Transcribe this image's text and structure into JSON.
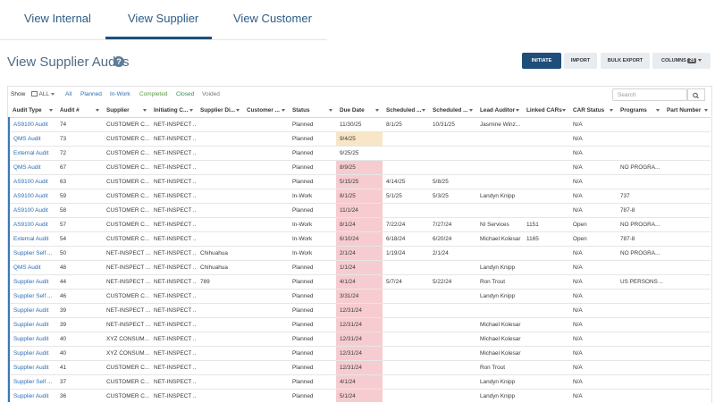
{
  "tabs": [
    "View Internal",
    "View Supplier",
    "View Customer"
  ],
  "title": "View Supplier Audits",
  "buttons": {
    "initiate": "INITIATE",
    "import": "IMPORT",
    "bulk_export": "BULK EXPORT",
    "columns": "COLUMNS",
    "columns_count": 25
  },
  "filter": {
    "show": "Show",
    "scope": "ALL",
    "statuses": [
      "All",
      "Planned",
      "In-Work",
      "Completed",
      "Closed",
      "Voided"
    ]
  },
  "search_placeholder": "Search",
  "table": {
    "columns": [
      "Audit Type",
      "Audit #",
      "Supplier",
      "Initiating C...",
      "Supplier Di...",
      "Customer ...",
      "Status",
      "Due Date",
      "Scheduled ...",
      "Scheduled ...",
      "Lead Auditor",
      "Linked CARs",
      "CAR Status",
      "Programs",
      "Part Number"
    ],
    "rows": [
      {
        "cells": [
          "AS9100 Audit",
          74,
          "CUSTOMER C...",
          "NET-INSPECT ...",
          null,
          null,
          "Planned",
          "11/30/25",
          "8/1/25",
          "10/31/25",
          "Jasmine Winz...",
          null,
          "N/A",
          null,
          null
        ],
        "due_color": null
      },
      {
        "cells": [
          "QMS Audit",
          73,
          "CUSTOMER C...",
          "NET-INSPECT ...",
          null,
          null,
          "Planned",
          "9/4/25",
          null,
          null,
          null,
          null,
          "N/A",
          null,
          null
        ],
        "due_color": "#f8e6c6"
      },
      {
        "cells": [
          "External Audit",
          72,
          "CUSTOMER C...",
          "NET-INSPECT ...",
          null,
          null,
          "Planned",
          "9/25/25",
          null,
          null,
          null,
          null,
          "N/A",
          null,
          null
        ],
        "due_color": null
      },
      {
        "cells": [
          "QMS Audit",
          67,
          "CUSTOMER C...",
          "NET-INSPECT ...",
          null,
          null,
          "Planned",
          "8/9/25",
          null,
          null,
          null,
          null,
          "N/A",
          "NO PROGRA...",
          null
        ],
        "due_color": "#f6ccd0"
      },
      {
        "cells": [
          "AS9100 Audit",
          63,
          "CUSTOMER C...",
          "NET-INSPECT ...",
          null,
          null,
          "Planned",
          "5/15/25",
          "4/14/25",
          "5/8/25",
          null,
          null,
          "N/A",
          null,
          null
        ],
        "due_color": "#f6ccd0"
      },
      {
        "cells": [
          "AS9100 Audit",
          59,
          "CUSTOMER C...",
          "NET-INSPECT ...",
          null,
          null,
          "In-Work",
          "8/1/25",
          "5/1/25",
          "5/3/25",
          "Landyn Knipp",
          null,
          "N/A",
          "737",
          null
        ],
        "due_color": "#f6ccd0"
      },
      {
        "cells": [
          "AS9100 Audit",
          58,
          "CUSTOMER C...",
          "NET-INSPECT ...",
          null,
          null,
          "Planned",
          "11/1/24",
          null,
          null,
          null,
          null,
          "N/A",
          "787-8",
          null
        ],
        "due_color": "#f6ccd0"
      },
      {
        "cells": [
          "AS9100 Audit",
          57,
          "CUSTOMER C...",
          "NET-INSPECT ...",
          null,
          null,
          "In-Work",
          "8/1/24",
          "7/22/24",
          "7/27/24",
          "NI Services",
          "1151",
          "Open",
          "NO PROGRA...",
          null
        ],
        "due_color": "#f6ccd0"
      },
      {
        "cells": [
          "External Audit",
          54,
          "CUSTOMER C...",
          "NET-INSPECT ...",
          null,
          null,
          "In-Work",
          "6/10/24",
          "6/18/24",
          "6/20/24",
          "Michael Kolesar",
          "1165",
          "Open",
          "787-8",
          null
        ],
        "due_color": "#f6ccd0"
      },
      {
        "cells": [
          "Supplier Self ...",
          50,
          "NET-INSPECT ...",
          "NET-INSPECT ...",
          "Chihuahua",
          null,
          "In-Work",
          "2/1/24",
          "1/19/24",
          "2/1/24",
          null,
          null,
          "N/A",
          "NO PROGRA...",
          null
        ],
        "due_color": "#f6ccd0"
      },
      {
        "cells": [
          "QMS Audit",
          48,
          "NET-INSPECT ...",
          "NET-INSPECT ...",
          "Chihuahua",
          null,
          "Planned",
          "1/1/24",
          null,
          null,
          "Landyn Knipp",
          null,
          "N/A",
          null,
          null
        ],
        "due_color": "#f6ccd0"
      },
      {
        "cells": [
          "Supplier Audit",
          44,
          "NET-INSPECT ...",
          "NET-INSPECT ...",
          "789",
          null,
          "Planned",
          "4/1/24",
          "5/7/24",
          "5/22/24",
          "Ron Trout",
          null,
          "N/A",
          "US PERSONS ...",
          null
        ],
        "due_color": "#f6ccd0"
      },
      {
        "cells": [
          "Supplier Self ...",
          46,
          "CUSTOMER C...",
          "NET-INSPECT ...",
          null,
          null,
          "Planned",
          "3/31/24",
          null,
          null,
          "Landyn Knipp",
          null,
          "N/A",
          null,
          null
        ],
        "due_color": "#f6ccd0"
      },
      {
        "cells": [
          "Supplier Audit",
          39,
          "NET-INSPECT ...",
          "NET-INSPECT ...",
          null,
          null,
          "Planned",
          "12/31/24",
          null,
          null,
          null,
          null,
          "N/A",
          null,
          null
        ],
        "due_color": "#f6ccd0"
      },
      {
        "cells": [
          "Supplier Audit",
          39,
          "NET-INSPECT ...",
          "NET-INSPECT ...",
          null,
          null,
          "Planned",
          "12/31/24",
          null,
          null,
          "Michael Kolesar",
          null,
          "N/A",
          null,
          null
        ],
        "due_color": "#f6ccd0"
      },
      {
        "cells": [
          "Supplier Audit",
          40,
          "XYZ CONSUM...",
          "NET-INSPECT ...",
          null,
          null,
          "Planned",
          "12/31/24",
          null,
          null,
          "Michael Kolesar",
          null,
          "N/A",
          null,
          null
        ],
        "due_color": "#f6ccd0"
      },
      {
        "cells": [
          "Supplier Audit",
          40,
          "XYZ CONSUM...",
          "NET-INSPECT ...",
          null,
          null,
          "Planned",
          "12/31/24",
          null,
          null,
          "Michael Kolesar",
          null,
          "N/A",
          null,
          null
        ],
        "due_color": "#f6ccd0"
      },
      {
        "cells": [
          "Supplier Audit",
          41,
          "CUSTOMER C...",
          "NET-INSPECT ...",
          null,
          null,
          "Planned",
          "12/31/24",
          null,
          null,
          "Ron Trout",
          null,
          "N/A",
          null,
          null
        ],
        "due_color": "#f6ccd0"
      },
      {
        "cells": [
          "Supplier Self ...",
          37,
          "CUSTOMER C...",
          "NET-INSPECT ...",
          null,
          null,
          "Planned",
          "4/1/24",
          null,
          null,
          "Landyn Knipp",
          null,
          "N/A",
          null,
          null
        ],
        "due_color": "#f6ccd0"
      },
      {
        "cells": [
          "Supplier Audit",
          36,
          "CUSTOMER C...",
          "NET-INSPECT ...",
          null,
          null,
          "Planned",
          "5/1/24",
          null,
          null,
          "Landyn Knipp",
          null,
          "N/A",
          null,
          null
        ],
        "due_color": "#f6ccd0"
      }
    ]
  }
}
